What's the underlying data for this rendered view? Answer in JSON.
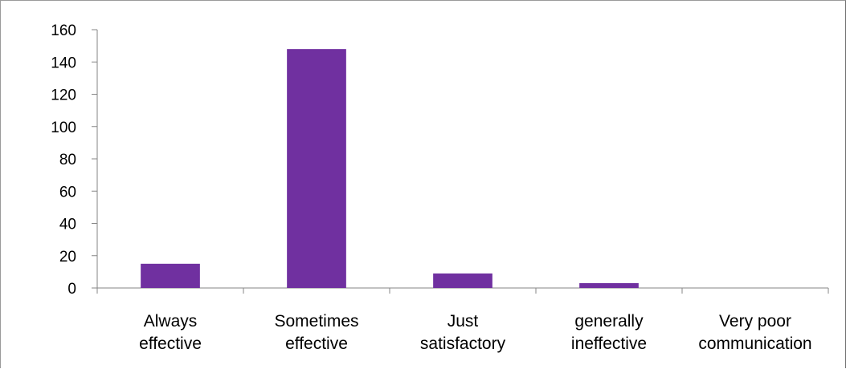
{
  "chart_data": {
    "type": "bar",
    "title": "",
    "xlabel": "",
    "ylabel": "",
    "categories": [
      [
        "Always",
        "effective"
      ],
      [
        "Sometimes",
        "effective"
      ],
      [
        "Just",
        "satisfactory"
      ],
      [
        "generally",
        "ineffective"
      ],
      [
        "Very poor",
        "communication"
      ]
    ],
    "values": [
      15,
      148,
      9,
      3,
      0
    ],
    "ylim": [
      0,
      160
    ],
    "yticks": [
      0,
      20,
      40,
      60,
      80,
      100,
      120,
      140,
      160
    ],
    "bar_color": "#7030a0",
    "axis_color": "#868686",
    "grid": false,
    "legend": "none"
  }
}
